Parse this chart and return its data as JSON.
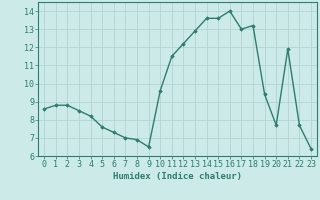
{
  "x": [
    0,
    1,
    2,
    3,
    4,
    5,
    6,
    7,
    8,
    9,
    10,
    11,
    12,
    13,
    14,
    15,
    16,
    17,
    18,
    19,
    20,
    21,
    22,
    23
  ],
  "y": [
    8.6,
    8.8,
    8.8,
    8.5,
    8.2,
    7.6,
    7.3,
    7.0,
    6.9,
    6.5,
    9.6,
    11.5,
    12.2,
    12.9,
    13.6,
    13.6,
    14.0,
    13.0,
    13.2,
    9.4,
    7.7,
    11.9,
    7.7,
    6.4
  ],
  "line_color": "#2e7d6e",
  "marker": "D",
  "marker_size": 1.8,
  "line_width": 1.0,
  "bg_color": "#cceae7",
  "grid_color": "#b0d0cc",
  "title": "",
  "xlabel": "Humidex (Indice chaleur)",
  "ylabel": "",
  "xlim": [
    -0.5,
    23.5
  ],
  "ylim": [
    6,
    14.5
  ],
  "yticks": [
    6,
    7,
    8,
    9,
    10,
    11,
    12,
    13,
    14
  ],
  "xticks": [
    0,
    1,
    2,
    3,
    4,
    5,
    6,
    7,
    8,
    9,
    10,
    11,
    12,
    13,
    14,
    15,
    16,
    17,
    18,
    19,
    20,
    21,
    22,
    23
  ],
  "xlabel_fontsize": 6.5,
  "tick_fontsize": 6.0,
  "axis_color": "#2e7d6e"
}
